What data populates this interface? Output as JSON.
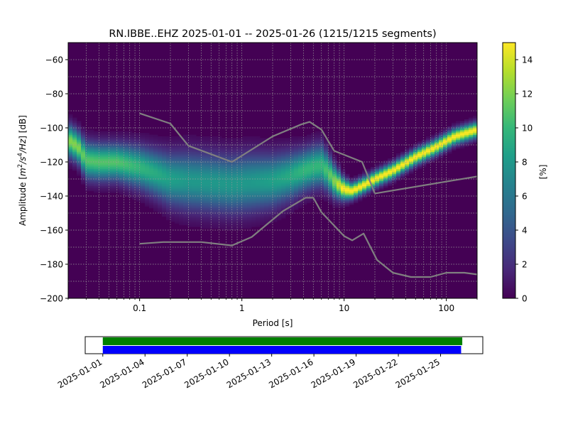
{
  "chart_data": [
    {
      "type": "heatmap",
      "title": "RN.IBBE..EHZ   2025-01-01 -- 2025-01-26  (1215/1215 segments)",
      "xlabel": "Period [s]",
      "ylabel_main": "Amplitude [",
      "ylabel_unit_num": "m",
      "ylabel_unit_num_sup": "2",
      "ylabel_unit_den": "/s",
      "ylabel_unit_den_sup": "4",
      "ylabel_unit_hz": "/Hz",
      "ylabel_tail": "] [dB]",
      "x_scale": "log",
      "xlim": [
        0.02,
        200
      ],
      "ylim": [
        -200,
        -50
      ],
      "x_ticks": [
        {
          "value": 0.1,
          "label": "0.1"
        },
        {
          "value": 1,
          "label": "1"
        },
        {
          "value": 10,
          "label": "10"
        },
        {
          "value": 100,
          "label": "100"
        }
      ],
      "y_ticks": [
        {
          "value": -60,
          "label": "−60"
        },
        {
          "value": -80,
          "label": "−80"
        },
        {
          "value": -100,
          "label": "−100"
        },
        {
          "value": -120,
          "label": "−120"
        },
        {
          "value": -140,
          "label": "−140"
        },
        {
          "value": -160,
          "label": "−160"
        },
        {
          "value": -180,
          "label": "−180"
        },
        {
          "value": -200,
          "label": "−200"
        }
      ],
      "grid": true,
      "background_color": "#440154",
      "mode_curve": {
        "period": [
          0.02,
          0.025,
          0.03,
          0.04,
          0.06,
          0.1,
          0.15,
          0.2,
          0.3,
          0.5,
          0.8,
          1.2,
          2,
          3,
          4,
          5,
          6,
          7,
          8,
          10,
          12,
          15,
          20,
          30,
          50,
          80,
          120,
          200
        ],
        "db": [
          -107,
          -111,
          -119,
          -120,
          -120,
          -123,
          -127,
          -130,
          -131,
          -132,
          -133,
          -132,
          -131,
          -128,
          -125,
          -123,
          -122,
          -126,
          -131,
          -136,
          -137,
          -134,
          -130,
          -125,
          -117,
          -111,
          -105,
          -101
        ]
      },
      "spread_db": [
        6,
        6,
        7,
        7,
        7,
        8,
        9,
        10,
        11,
        11,
        11,
        11,
        10,
        9,
        8,
        8,
        8,
        7,
        6,
        4,
        3,
        3,
        3,
        3,
        3,
        3,
        3,
        3
      ],
      "reference_curves": [
        {
          "period": [
            0.1,
            0.2,
            0.3,
            0.8,
            2,
            3.8,
            4.6,
            6,
            8,
            15,
            20
          ],
          "db": [
            -91.5,
            -97.5,
            -110.5,
            -120,
            -105,
            -98,
            -96.5,
            -101,
            -113.5,
            -120,
            -138.5
          ]
        },
        {
          "period": [
            20,
            200
          ],
          "db": [
            -138.5,
            -128.5
          ]
        },
        {
          "period": [
            0.1,
            0.17,
            0.4,
            0.8,
            1.25,
            2.5,
            4.2,
            5,
            6,
            10,
            12,
            15.5,
            21,
            30,
            45,
            70,
            100,
            150,
            200
          ],
          "db": [
            -168,
            -167,
            -167,
            -169,
            -164,
            -149,
            -141,
            -141,
            -149.5,
            -163.5,
            -166,
            -162,
            -177.5,
            -185,
            -187.5,
            -187.5,
            -185,
            -185,
            -186
          ]
        }
      ],
      "reference_color": "#808080"
    },
    {
      "type": "colorbar",
      "label": "[%]",
      "range": [
        0,
        15
      ],
      "ticks": [
        {
          "value": 0,
          "label": "0"
        },
        {
          "value": 2,
          "label": "2"
        },
        {
          "value": 4,
          "label": "4"
        },
        {
          "value": 6,
          "label": "6"
        },
        {
          "value": 8,
          "label": "8"
        },
        {
          "value": 10,
          "label": "10"
        },
        {
          "value": 12,
          "label": "12"
        },
        {
          "value": 14,
          "label": "14"
        }
      ],
      "colormap": [
        "#440154",
        "#482878",
        "#3e4989",
        "#31688e",
        "#26828e",
        "#1f9e89",
        "#35b779",
        "#6ece58",
        "#b5de2b",
        "#fde725"
      ]
    },
    {
      "type": "timeline",
      "xlim": [
        "2024-12-30T18:00",
        "2025-01-28T00:00"
      ],
      "ticks": [
        "2025-01-01",
        "2025-01-04",
        "2025-01-07",
        "2025-01-10",
        "2025-01-13",
        "2025-01-16",
        "2025-01-19",
        "2025-01-22",
        "2025-01-25"
      ],
      "bars": [
        {
          "color": "#008000",
          "start": "2025-01-01T00:00",
          "end": "2025-01-26T13:00"
        },
        {
          "color": "#0000ff",
          "start": "2025-01-01T00:00",
          "end": "2025-01-26T11:00"
        }
      ]
    }
  ]
}
